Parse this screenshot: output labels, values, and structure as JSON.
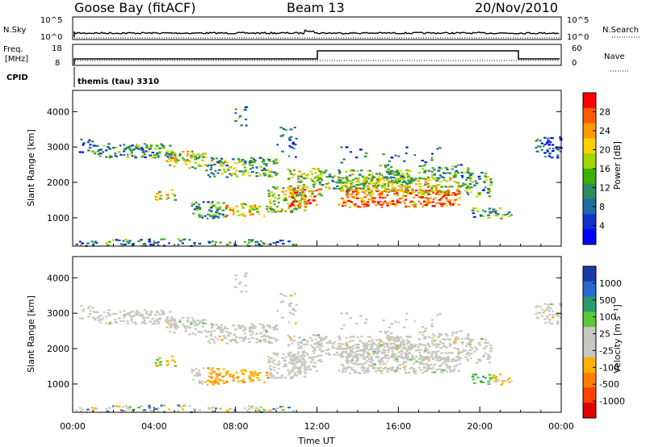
{
  "header": {
    "station": "Goose Bay (fitACF)",
    "beam": "Beam 13",
    "date": "20/Nov/2010"
  },
  "top_panels": {
    "nsky_label": "N.Sky",
    "nsky_ticks": [
      "10^5",
      "10^0"
    ],
    "nsearch_label": "N.Search",
    "nsearch_ticks": [
      "10^5",
      "10^0"
    ],
    "freq_label": "Freq.",
    "freq_unit": "[MHz]",
    "freq_ticks": [
      "18",
      "8"
    ],
    "nave_label": "Nave",
    "nave_ticks": [
      "60",
      "0"
    ],
    "cpid_label": "CPID",
    "cpid_value": "themis (tau) 3310"
  },
  "chart_data": [
    {
      "type": "heatmap",
      "ylabel": "Slant Range [km]",
      "xlabel": "Time UT",
      "y_ticks": [
        "4000",
        "3000",
        "2000",
        "1000"
      ],
      "y_values": [
        4000,
        3000,
        2000,
        1000
      ],
      "ylim": [
        200,
        4600
      ],
      "x_ticks": [
        "00:00",
        "04:00",
        "08:00",
        "12:00",
        "16:00",
        "20:00",
        "00:00"
      ],
      "xlim_hours": [
        0,
        24
      ],
      "colorbar": {
        "label": "Power [dB]",
        "ticks": [
          "28",
          "24",
          "20",
          "16",
          "12",
          "8",
          "4"
        ],
        "colors": [
          "#ff0000",
          "#ff5a00",
          "#ff9a00",
          "#ffd000",
          "#a0d800",
          "#3ab000",
          "#2a8a60",
          "#1f6aa0",
          "#1030d0",
          "#0000ff"
        ]
      }
    },
    {
      "type": "heatmap",
      "ylabel": "Slant Range [km]",
      "xlabel": "Time UT",
      "y_ticks": [
        "4000",
        "3000",
        "2000",
        "1000"
      ],
      "y_values": [
        4000,
        3000,
        2000,
        1000
      ],
      "ylim": [
        200,
        4600
      ],
      "x_ticks": [
        "00:00",
        "04:00",
        "08:00",
        "12:00",
        "16:00",
        "20:00",
        "00:00"
      ],
      "xlim_hours": [
        0,
        24
      ],
      "colorbar": {
        "label": "Velocity [m s⁻¹]",
        "ticks": [
          "1000",
          "500",
          "100",
          "25",
          "-25",
          "-100",
          "-500",
          "-1000"
        ],
        "colors": [
          "#1a3aa8",
          "#2a6ad0",
          "#2a9a6a",
          "#5ac83a",
          "#c8c8c0",
          "#c8c8c0",
          "#ffb000",
          "#ff8000",
          "#ff4000",
          "#e00000"
        ]
      }
    }
  ],
  "x_axis": {
    "ticks": [
      "00:00",
      "04:00",
      "08:00",
      "12:00",
      "16:00",
      "20:00",
      "00:00"
    ],
    "label": "Time UT"
  }
}
